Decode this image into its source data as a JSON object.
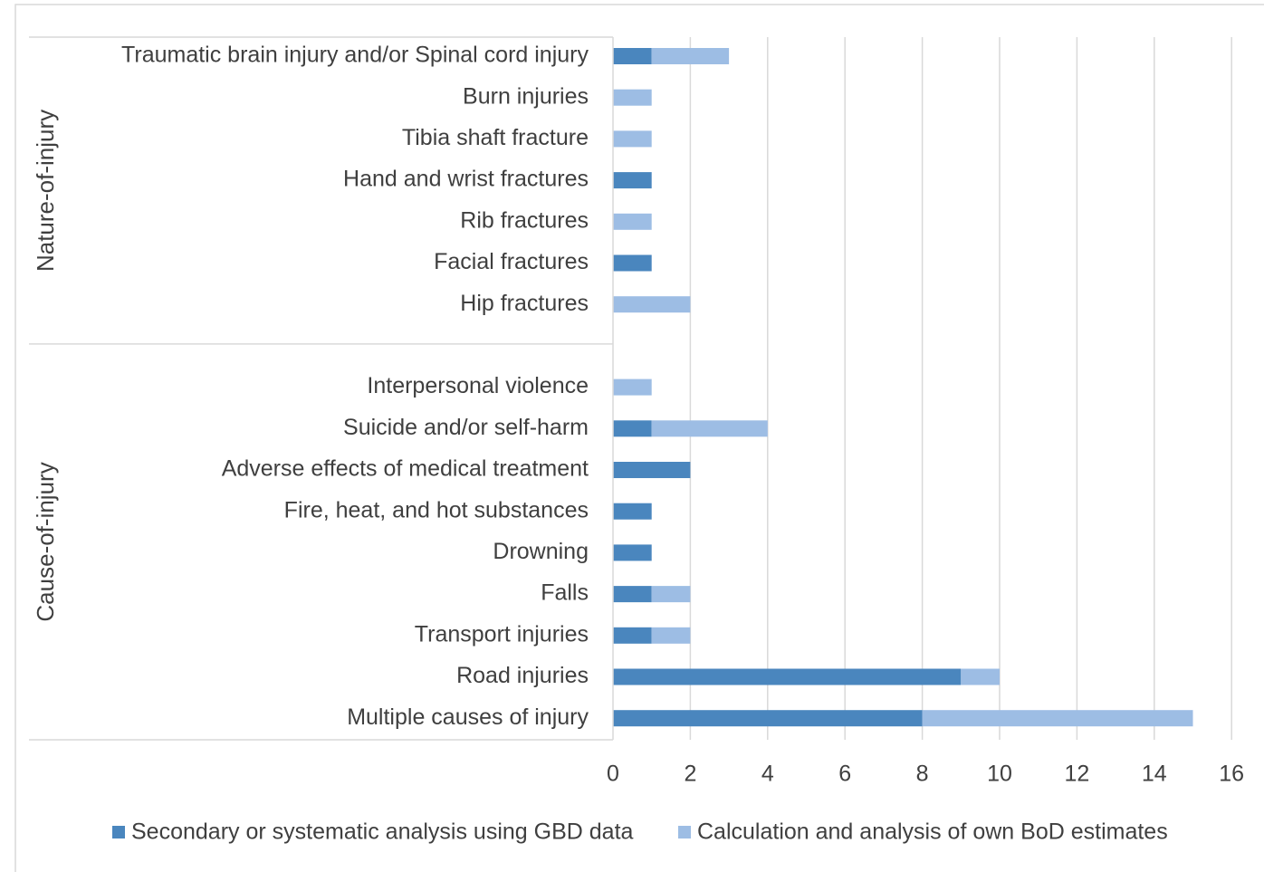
{
  "chart_data": {
    "type": "bar",
    "orientation": "horizontal",
    "stacked": true,
    "title": "",
    "xlabel": "",
    "ylabel": "",
    "xlim": [
      0,
      16
    ],
    "xticks": [
      0,
      2,
      4,
      6,
      8,
      10,
      12,
      14,
      16
    ],
    "grid": "vertical",
    "legend_position": "bottom",
    "groups": [
      {
        "label": "Nature-of-injury",
        "categories": [
          "Traumatic brain injury and/or Spinal cord injury",
          "Burn injuries",
          "Tibia shaft fracture",
          "Hand and wrist fractures",
          "Rib fractures",
          "Facial fractures",
          "Hip fractures"
        ]
      },
      {
        "label": "Cause-of-injury",
        "categories": [
          "Interpersonal violence",
          "Suicide and/or self-harm",
          "Adverse effects of medical treatment",
          "Fire, heat, and hot substances",
          "Drowning",
          "Falls",
          "Transport injuries",
          "Road injuries",
          "Multiple causes of injury"
        ]
      }
    ],
    "series": [
      {
        "name": "Secondary or systematic analysis using GBD data",
        "color": "#4a86be",
        "values": [
          1,
          0,
          0,
          1,
          0,
          1,
          0,
          0,
          1,
          2,
          1,
          1,
          1,
          1,
          9,
          8
        ]
      },
      {
        "name": "Calculation and analysis of own BoD estimates",
        "color": "#9dbde4",
        "values": [
          2,
          1,
          1,
          0,
          1,
          0,
          2,
          1,
          3,
          0,
          0,
          0,
          1,
          1,
          1,
          7
        ]
      }
    ]
  }
}
